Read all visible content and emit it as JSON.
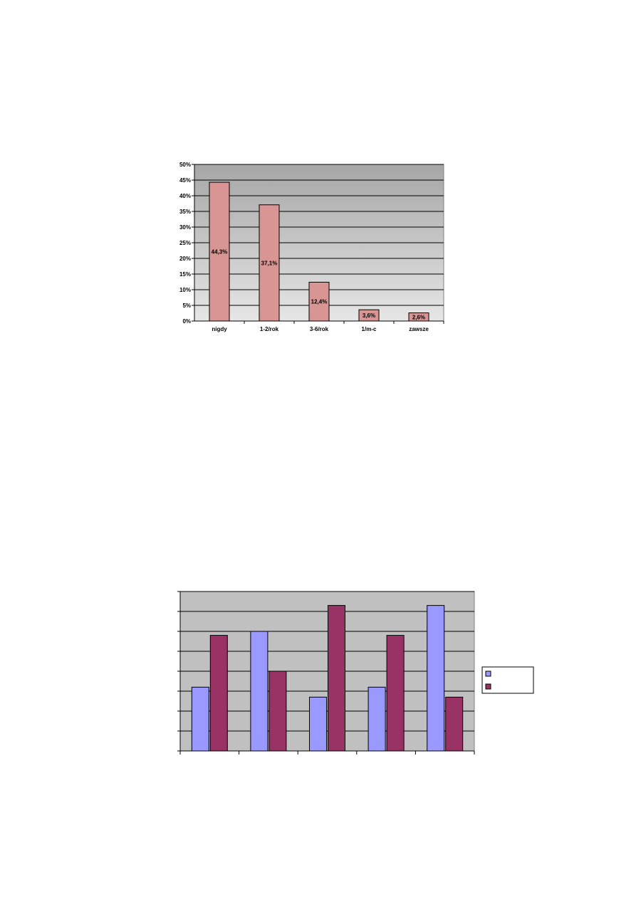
{
  "chart_data": [
    {
      "type": "bar",
      "categories": [
        "nigdy",
        "1-2/rok",
        "3-6/rok",
        "1/m-c",
        "zawsze"
      ],
      "values": [
        44.3,
        37.1,
        12.4,
        3.6,
        2.6
      ],
      "data_labels": [
        "44,3%",
        "37,1%",
        "12,4%",
        "3,6%",
        "2,6%"
      ],
      "y_ticks": [
        "0%",
        "5%",
        "10%",
        "15%",
        "20%",
        "25%",
        "30%",
        "35%",
        "40%",
        "45%",
        "50%"
      ],
      "ylim": [
        0,
        50
      ],
      "grid": true,
      "colors": {
        "bar": "#d99594",
        "plot_background_top": "#a6a6a6",
        "plot_background_bottom": "#e6e6e6"
      }
    },
    {
      "type": "bar",
      "categories": [
        "",
        "",
        "",
        "",
        ""
      ],
      "series": [
        {
          "values": [
            3.2,
            6.0,
            2.7,
            3.2,
            7.3
          ]
        },
        {
          "values": [
            5.8,
            4.0,
            7.3,
            5.8,
            2.7
          ]
        }
      ],
      "ylim": [
        0,
        8
      ],
      "grid": true,
      "legend": "right",
      "colors": {
        "series_1": "#9999ff",
        "series_2": "#993366",
        "plot_background": "#c0c0c0"
      }
    }
  ]
}
